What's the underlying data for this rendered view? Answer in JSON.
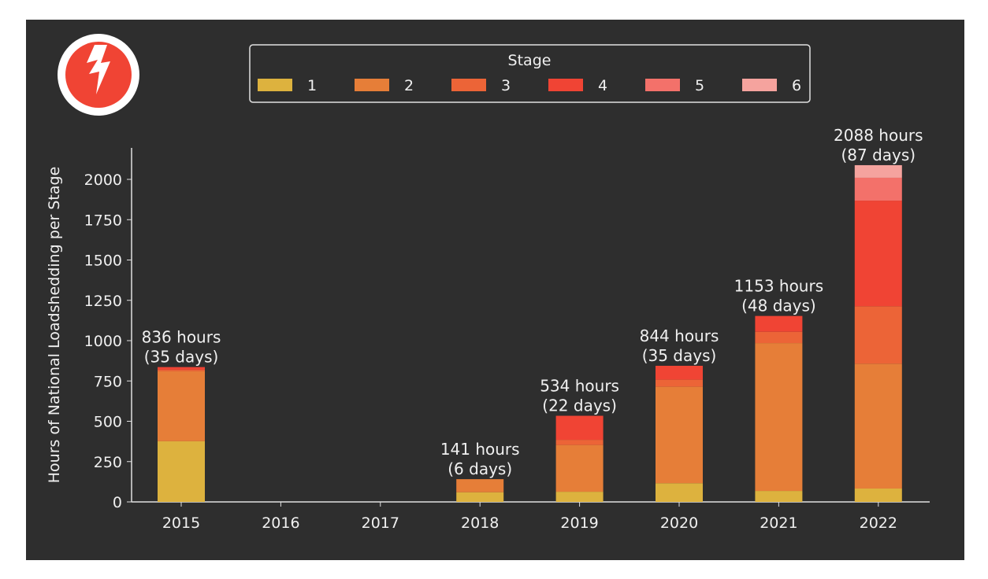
{
  "logo": {
    "icon": "lightning-bolt-icon",
    "circle_color": "#f04434"
  },
  "chart_data": {
    "type": "bar",
    "stacked": true,
    "title": "",
    "xlabel": "",
    "ylabel": "Hours of National Loadshedding per Stage",
    "ylim": [
      0,
      2200
    ],
    "yticks": [
      0,
      250,
      500,
      750,
      1000,
      1250,
      1500,
      1750,
      2000
    ],
    "categories": [
      "2015",
      "2016",
      "2017",
      "2018",
      "2019",
      "2020",
      "2021",
      "2022"
    ],
    "legend": {
      "title": "Stage",
      "placement": "top-center"
    },
    "series": [
      {
        "name": "1",
        "color": "#ddb23e",
        "values": [
          376,
          0,
          0,
          60,
          63,
          116,
          68,
          83
        ]
      },
      {
        "name": "2",
        "color": "#e67e38",
        "values": [
          434,
          0,
          0,
          81,
          290,
          598,
          917,
          774
        ]
      },
      {
        "name": "3",
        "color": "#ec6437",
        "values": [
          10,
          0,
          0,
          0,
          32,
          44,
          70,
          356
        ]
      },
      {
        "name": "4",
        "color": "#f04434",
        "values": [
          16,
          0,
          0,
          0,
          149,
          86,
          98,
          655
        ]
      },
      {
        "name": "5",
        "color": "#f3716a",
        "values": [
          0,
          0,
          0,
          0,
          0,
          0,
          0,
          142
        ]
      },
      {
        "name": "6",
        "color": "#f5a39e",
        "values": [
          0,
          0,
          0,
          0,
          0,
          0,
          0,
          78
        ]
      }
    ],
    "totals": [
      836,
      0,
      0,
      141,
      534,
      844,
      1153,
      2088
    ],
    "data_labels": [
      [
        "836 hours",
        "(35 days)"
      ],
      null,
      null,
      [
        "141 hours",
        "(6 days)"
      ],
      [
        "534 hours",
        "(22 days)"
      ],
      [
        "844 hours",
        "(35 days)"
      ],
      [
        "1153 hours",
        "(48 days)"
      ],
      [
        "2088 hours",
        "(87 days)"
      ]
    ],
    "grid": false
  }
}
